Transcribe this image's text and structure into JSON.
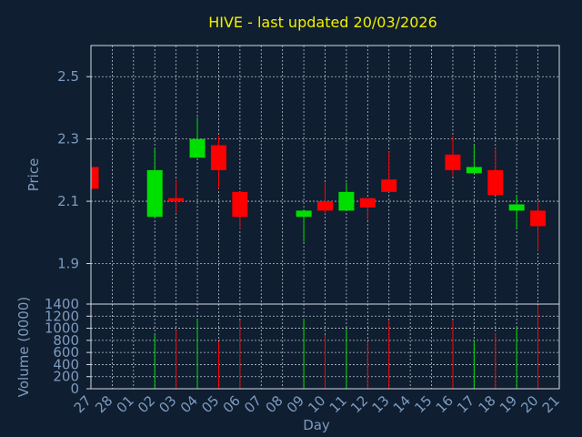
{
  "chart_data": {
    "type": "candlestick",
    "title": "HIVE - last updated 20/03/2026",
    "xlabel": "Day",
    "ylabel_price": "Price",
    "ylabel_volume": "Volume (0000)",
    "x_tick_labels": [
      "27",
      "28",
      "01",
      "02",
      "03",
      "04",
      "05",
      "06",
      "07",
      "08",
      "09",
      "10",
      "11",
      "12",
      "13",
      "14",
      "15",
      "16",
      "17",
      "18",
      "19",
      "20",
      "21"
    ],
    "price_ylim": [
      1.77,
      2.6
    ],
    "price_ticks": [
      "1.9",
      "2.1",
      "2.3",
      "2.5"
    ],
    "volume_ylim": [
      0,
      1400
    ],
    "volume_ticks": [
      "0",
      "200",
      "400",
      "600",
      "800",
      "1000",
      "1200",
      "1400"
    ],
    "grid": true,
    "colors": {
      "up": "#00e000",
      "down": "#ff0000",
      "background": "#0f1e30",
      "title": "#f2f000",
      "text": "#7d9bbf",
      "grid": "#b9c2cf"
    },
    "candles": [
      {
        "day": "27",
        "open": 2.21,
        "high": 2.21,
        "low": 2.14,
        "close": 2.14,
        "volume": 0
      },
      {
        "day": "02",
        "open": 2.05,
        "high": 2.27,
        "low": 2.05,
        "close": 2.2,
        "volume": 900
      },
      {
        "day": "03",
        "open": 2.11,
        "high": 2.17,
        "low": 2.06,
        "close": 2.1,
        "volume": 970
      },
      {
        "day": "04",
        "open": 2.24,
        "high": 2.37,
        "low": 2.24,
        "close": 2.3,
        "volume": 1160
      },
      {
        "day": "05",
        "open": 2.28,
        "high": 2.31,
        "low": 2.14,
        "close": 2.2,
        "volume": 780
      },
      {
        "day": "06",
        "open": 2.13,
        "high": 2.13,
        "low": 2.01,
        "close": 2.05,
        "volume": 1130
      },
      {
        "day": "09",
        "open": 2.05,
        "high": 2.07,
        "low": 1.97,
        "close": 2.07,
        "volume": 1160
      },
      {
        "day": "10",
        "open": 2.1,
        "high": 2.16,
        "low": 2.06,
        "close": 2.07,
        "volume": 890
      },
      {
        "day": "11",
        "open": 2.07,
        "high": 2.16,
        "low": 2.07,
        "close": 2.13,
        "volume": 990
      },
      {
        "day": "12",
        "open": 2.11,
        "high": 2.11,
        "low": 2.04,
        "close": 2.08,
        "volume": 780
      },
      {
        "day": "13",
        "open": 2.17,
        "high": 2.26,
        "low": 2.13,
        "close": 2.13,
        "volume": 1120
      },
      {
        "day": "16",
        "open": 2.25,
        "high": 2.31,
        "low": 2.18,
        "close": 2.2,
        "volume": 1120
      },
      {
        "day": "17",
        "open": 2.19,
        "high": 2.28,
        "low": 2.19,
        "close": 2.21,
        "volume": 800
      },
      {
        "day": "18",
        "open": 2.2,
        "high": 2.27,
        "low": 2.12,
        "close": 2.12,
        "volume": 920
      },
      {
        "day": "19",
        "open": 2.07,
        "high": 2.12,
        "low": 2.01,
        "close": 2.09,
        "volume": 1010
      },
      {
        "day": "20",
        "open": 2.07,
        "high": 2.1,
        "low": 1.94,
        "close": 2.02,
        "volume": 1380
      }
    ]
  }
}
